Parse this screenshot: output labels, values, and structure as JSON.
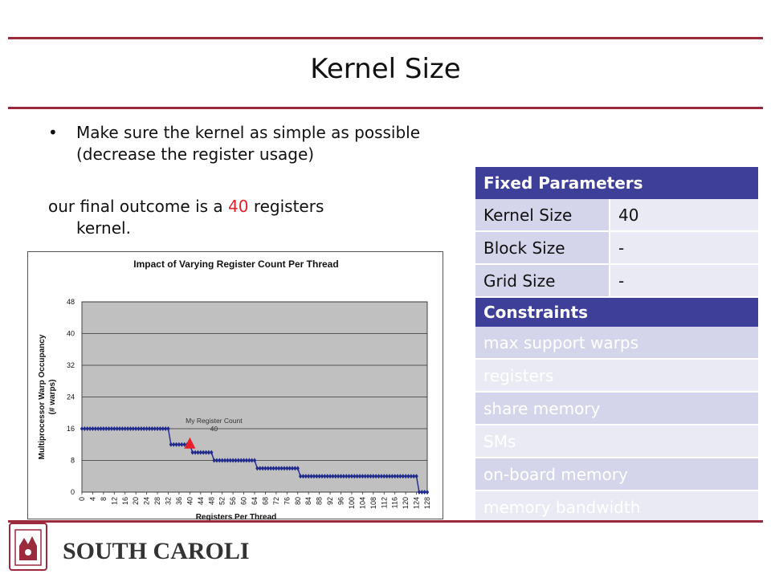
{
  "slide": {
    "title": "Kernel Size",
    "bullet_symbol": "•",
    "bullet_text": "Make sure the kernel as simple as possible (decrease the register usage)",
    "outcome_arrow": "",
    "outcome_prefix": " our final outcome is a ",
    "outcome_value": "40",
    "outcome_suffix": " registers",
    "outcome_line2": "kernel."
  },
  "params_table": {
    "fixed_header": "Fixed Parameters",
    "rows": [
      {
        "key": "Kernel Size",
        "value": "40"
      },
      {
        "key": "Block Size",
        "value": "-"
      },
      {
        "key": "Grid Size",
        "value": "-"
      }
    ],
    "constraints_header": "Constraints",
    "constraints": [
      "max support warps",
      "registers",
      "share memory",
      "SMs",
      "on-board memory",
      "memory bandwidth"
    ]
  },
  "logo": {
    "text": "SOUTH CAROLINA."
  },
  "colors": {
    "accent_rule": "#9a2a3c",
    "table_header": "#3e3f98",
    "series": "#1f2a8c",
    "marker": "#e8202a",
    "plot_bg": "#c0c0c0"
  },
  "chart_data": {
    "type": "line",
    "title": "Impact of Varying Register Count Per Thread",
    "xlabel": "Registers Per Thread",
    "ylabel_line1": "Multiprocessor Warp Occupancy",
    "ylabel_line2": "(# warps)",
    "xlim": [
      0,
      128
    ],
    "ylim": [
      0,
      48
    ],
    "y_ticks": [
      0,
      8,
      16,
      24,
      32,
      40,
      48
    ],
    "x_ticks": [
      0,
      4,
      8,
      12,
      16,
      20,
      24,
      28,
      32,
      36,
      40,
      44,
      48,
      52,
      56,
      60,
      64,
      68,
      72,
      76,
      80,
      84,
      88,
      92,
      96,
      100,
      104,
      108,
      112,
      116,
      120,
      124,
      128
    ],
    "grid": true,
    "series": [
      {
        "steps": [
          {
            "from": 0,
            "to": 32,
            "value": 16
          },
          {
            "from": 33,
            "to": 40,
            "value": 12
          },
          {
            "from": 41,
            "to": 48,
            "value": 10
          },
          {
            "from": 49,
            "to": 64,
            "value": 8
          },
          {
            "from": 65,
            "to": 80,
            "value": 6
          },
          {
            "from": 81,
            "to": 124,
            "value": 4
          },
          {
            "from": 125,
            "to": 128,
            "value": 0
          }
        ]
      }
    ],
    "annotation": {
      "label": "My Register Count",
      "value_label": "40",
      "x": 40,
      "y": 12
    }
  }
}
